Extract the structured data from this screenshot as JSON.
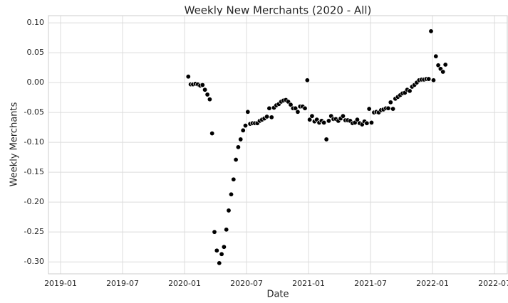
{
  "chart_data": {
    "type": "scatter",
    "title": "Weekly New Merchants (2020 - All)",
    "x_label": "Date",
    "y_label": "Weekly Merchants",
    "color": "#000000",
    "x": [
      2020.03,
      2020.049,
      2020.068,
      2020.088,
      2020.107,
      2020.126,
      2020.145,
      2020.164,
      2020.184,
      2020.203,
      2020.222,
      2020.241,
      2020.26,
      2020.28,
      2020.299,
      2020.318,
      2020.337,
      2020.356,
      2020.376,
      2020.395,
      2020.414,
      2020.433,
      2020.452,
      2020.472,
      2020.491,
      2020.51,
      2020.529,
      2020.548,
      2020.568,
      2020.587,
      2020.606,
      2020.625,
      2020.644,
      2020.664,
      2020.683,
      2020.702,
      2020.721,
      2020.74,
      2020.76,
      2020.779,
      2020.798,
      2020.817,
      2020.836,
      2020.856,
      2020.875,
      2020.894,
      2020.913,
      2020.932,
      2020.952,
      2020.971,
      2020.99,
      2021.009,
      2021.028,
      2021.048,
      2021.067,
      2021.086,
      2021.105,
      2021.124,
      2021.144,
      2021.163,
      2021.182,
      2021.201,
      2021.22,
      2021.24,
      2021.259,
      2021.278,
      2021.297,
      2021.316,
      2021.336,
      2021.355,
      2021.374,
      2021.393,
      2021.412,
      2021.432,
      2021.451,
      2021.47,
      2021.489,
      2021.508,
      2021.528,
      2021.547,
      2021.566,
      2021.585,
      2021.604,
      2021.624,
      2021.643,
      2021.662,
      2021.681,
      2021.7,
      2021.72,
      2021.739,
      2021.758,
      2021.777,
      2021.796,
      2021.816,
      2021.835,
      2021.854,
      2021.873,
      2021.892,
      2021.912,
      2021.931,
      2021.95,
      2021.969,
      2021.988,
      2022.008,
      2022.027,
      2022.046,
      2022.065,
      2022.084,
      2022.104
    ],
    "values": [
      0.01,
      -0.003,
      -0.003,
      -0.002,
      -0.003,
      -0.005,
      -0.004,
      -0.012,
      -0.02,
      -0.028,
      -0.085,
      -0.25,
      -0.281,
      -0.302,
      -0.287,
      -0.275,
      -0.246,
      -0.214,
      -0.187,
      -0.162,
      -0.129,
      -0.108,
      -0.095,
      -0.08,
      -0.072,
      -0.049,
      -0.069,
      -0.068,
      -0.068,
      -0.068,
      -0.064,
      -0.062,
      -0.06,
      -0.057,
      -0.043,
      -0.058,
      -0.042,
      -0.038,
      -0.036,
      -0.032,
      -0.03,
      -0.029,
      -0.032,
      -0.037,
      -0.043,
      -0.043,
      -0.049,
      -0.04,
      -0.04,
      -0.043,
      0.004,
      -0.062,
      -0.056,
      -0.065,
      -0.062,
      -0.067,
      -0.064,
      -0.067,
      -0.095,
      -0.064,
      -0.056,
      -0.061,
      -0.061,
      -0.064,
      -0.06,
      -0.056,
      -0.063,
      -0.063,
      -0.064,
      -0.068,
      -0.067,
      -0.062,
      -0.068,
      -0.07,
      -0.065,
      -0.068,
      -0.044,
      -0.067,
      -0.05,
      -0.049,
      -0.05,
      -0.046,
      -0.045,
      -0.043,
      -0.043,
      -0.033,
      -0.044,
      -0.027,
      -0.024,
      -0.021,
      -0.018,
      -0.017,
      -0.012,
      -0.014,
      -0.007,
      -0.004,
      0.0,
      0.004,
      0.005,
      0.005,
      0.006,
      0.006,
      0.086,
      0.004,
      0.044,
      0.029,
      0.023,
      0.018,
      0.03
    ],
    "xlim": [
      2018.902,
      2022.603
    ],
    "xticks": [
      {
        "value": 2019.0,
        "label": "2019-01"
      },
      {
        "value": 2019.5,
        "label": "2019-07"
      },
      {
        "value": 2020.0,
        "label": "2020-01"
      },
      {
        "value": 2020.5,
        "label": "2020-07"
      },
      {
        "value": 2021.0,
        "label": "2021-01"
      },
      {
        "value": 2021.5,
        "label": "2021-07"
      },
      {
        "value": 2022.0,
        "label": "2022-01"
      },
      {
        "value": 2022.5,
        "label": "2022-07"
      }
    ],
    "ylim": [
      -0.32,
      0.112
    ],
    "yticks": [
      {
        "value": 0.1,
        "label": "0.10"
      },
      0.05,
      {
        "value": 0,
        "label": "0.00"
      },
      -0.05,
      {
        "value": -0.1,
        "label": "-0.10"
      },
      -0.15,
      {
        "value": -0.2,
        "label": "-0.20"
      },
      -0.25,
      {
        "value": -0.3,
        "label": "-0.30"
      }
    ],
    "grid": true
  }
}
